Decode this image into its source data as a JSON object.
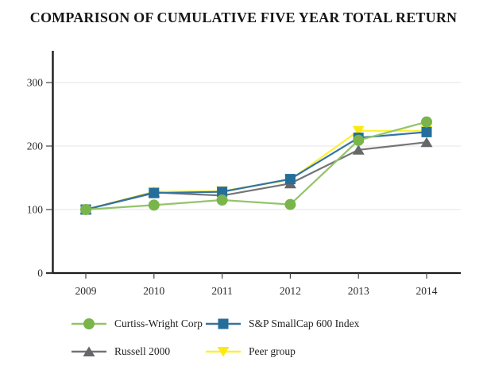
{
  "chart_data": {
    "type": "line",
    "title": "COMPARISON OF CUMULATIVE FIVE YEAR TOTAL RETURN",
    "x": [
      "2009",
      "2010",
      "2011",
      "2012",
      "2013",
      "2014"
    ],
    "xlabel": "",
    "ylabel": "",
    "ylim": [
      0,
      350
    ],
    "yticks": [
      0,
      100,
      200,
      300
    ],
    "grid": "horizontal-light",
    "legend_position": "bottom",
    "colors": {
      "axis": "#1c1c1c",
      "gridline": "#eaeaea",
      "text": "#2a2a2a"
    },
    "series": [
      {
        "name": "Curtiss-Wright Corp",
        "marker": "circle",
        "line_color": "#92c468",
        "marker_color": "#79b54a",
        "values": [
          100,
          107,
          115,
          108,
          209,
          238
        ]
      },
      {
        "name": "S&P SmallCap 600 Index",
        "marker": "square",
        "line_color": "#34749f",
        "marker_color": "#256e99",
        "values": [
          100,
          126,
          128,
          148,
          213,
          222
        ]
      },
      {
        "name": "Russell 2000",
        "marker": "triangle-up",
        "line_color": "#737477",
        "marker_color": "#66676a",
        "values": [
          100,
          127,
          122,
          141,
          194,
          206
        ]
      },
      {
        "name": "Peer group",
        "marker": "triangle-down",
        "line_color": "#fdf032",
        "marker_color": "#fde90f",
        "values": [
          100,
          128,
          129,
          147,
          224,
          224
        ]
      }
    ]
  }
}
